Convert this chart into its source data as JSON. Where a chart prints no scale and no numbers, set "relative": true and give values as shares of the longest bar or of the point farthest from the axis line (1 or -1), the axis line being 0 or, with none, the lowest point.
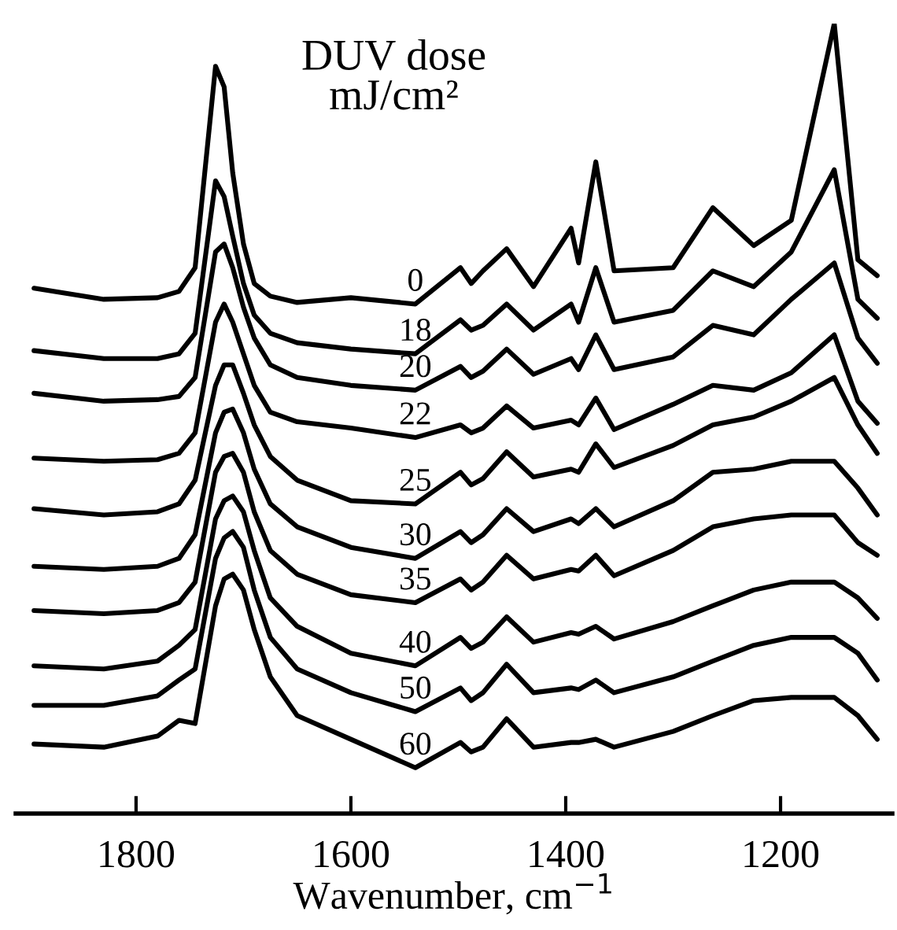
{
  "chart_data": {
    "type": "line",
    "relative": true,
    "legend": false,
    "grid": false,
    "tick_labels": "x",
    "marker": "none",
    "line_style": "solid",
    "legend_title": "DUV dose\nmJ/cm²",
    "xlabel": "Wavenumber, cm$^{−1}$",
    "xlim": [
      1912,
      1096
    ],
    "xticks": [
      1800,
      1600,
      1400,
      1200
    ],
    "x": [
      1895,
      1830,
      1780,
      1760,
      1745,
      1726,
      1718,
      1710,
      1700,
      1690,
      1675,
      1650,
      1600,
      1540,
      1498,
      1488,
      1477,
      1455,
      1430,
      1395,
      1388,
      1372,
      1355,
      1300,
      1263,
      1225,
      1190,
      1150,
      1128,
      1110
    ],
    "series": [
      {
        "name": "0",
        "color": "#000000",
        "values": [
          0.665,
          0.651,
          0.653,
          0.661,
          0.691,
          0.946,
          0.92,
          0.811,
          0.721,
          0.671,
          0.655,
          0.647,
          0.653,
          0.645,
          0.691,
          0.671,
          0.687,
          0.715,
          0.667,
          0.741,
          0.697,
          0.825,
          0.687,
          0.691,
          0.767,
          0.719,
          0.751,
          1,
          0.701,
          0.681
        ]
      },
      {
        "name": "18",
        "color": "#000000",
        "values": [
          0.586,
          0.576,
          0.576,
          0.582,
          0.608,
          0.801,
          0.781,
          0.731,
          0.671,
          0.631,
          0.608,
          0.596,
          0.588,
          0.582,
          0.625,
          0.612,
          0.618,
          0.645,
          0.612,
          0.645,
          0.622,
          0.691,
          0.622,
          0.637,
          0.687,
          0.667,
          0.711,
          0.815,
          0.651,
          0.627
        ]
      },
      {
        "name": "20",
        "color": "#000000",
        "values": [
          0.532,
          0.522,
          0.524,
          0.528,
          0.552,
          0.711,
          0.721,
          0.691,
          0.641,
          0.602,
          0.568,
          0.552,
          0.542,
          0.536,
          0.566,
          0.552,
          0.56,
          0.588,
          0.556,
          0.576,
          0.562,
          0.606,
          0.562,
          0.578,
          0.618,
          0.606,
          0.651,
          0.697,
          0.602,
          0.57
        ]
      },
      {
        "name": "22",
        "color": "#000000",
        "values": [
          0.45,
          0.446,
          0.448,
          0.456,
          0.482,
          0.622,
          0.645,
          0.622,
          0.582,
          0.542,
          0.508,
          0.496,
          0.488,
          0.476,
          0.492,
          0.482,
          0.488,
          0.516,
          0.488,
          0.498,
          0.492,
          0.526,
          0.486,
          0.518,
          0.542,
          0.536,
          0.558,
          0.606,
          0.522,
          0.494
        ]
      },
      {
        "name": "25",
        "color": "#000000",
        "values": [
          0.386,
          0.378,
          0.382,
          0.392,
          0.422,
          0.542,
          0.568,
          0.568,
          0.532,
          0.492,
          0.452,
          0.422,
          0.396,
          0.392,
          0.432,
          0.416,
          0.424,
          0.458,
          0.426,
          0.436,
          0.432,
          0.468,
          0.438,
          0.466,
          0.492,
          0.502,
          0.522,
          0.552,
          0.492,
          0.456
        ]
      },
      {
        "name": "30",
        "color": "#000000",
        "values": [
          0.313,
          0.309,
          0.313,
          0.323,
          0.353,
          0.482,
          0.508,
          0.512,
          0.482,
          0.436,
          0.392,
          0.363,
          0.337,
          0.323,
          0.357,
          0.343,
          0.353,
          0.386,
          0.357,
          0.373,
          0.367,
          0.386,
          0.363,
          0.396,
          0.432,
          0.436,
          0.446,
          0.446,
          0.412,
          0.378
        ]
      },
      {
        "name": "35",
        "color": "#000000",
        "values": [
          0.257,
          0.253,
          0.257,
          0.267,
          0.293,
          0.432,
          0.452,
          0.456,
          0.432,
          0.382,
          0.333,
          0.303,
          0.277,
          0.267,
          0.297,
          0.283,
          0.293,
          0.327,
          0.297,
          0.309,
          0.307,
          0.327,
          0.301,
          0.333,
          0.363,
          0.373,
          0.378,
          0.378,
          0.343,
          0.327
        ]
      },
      {
        "name": "40",
        "color": "#000000",
        "values": [
          0.187,
          0.183,
          0.193,
          0.213,
          0.233,
          0.373,
          0.396,
          0.402,
          0.382,
          0.333,
          0.273,
          0.237,
          0.203,
          0.187,
          0.223,
          0.209,
          0.217,
          0.249,
          0.217,
          0.229,
          0.227,
          0.237,
          0.221,
          0.243,
          0.263,
          0.283,
          0.293,
          0.293,
          0.273,
          0.247
        ]
      },
      {
        "name": "50",
        "color": "#000000",
        "values": [
          0.137,
          0.137,
          0.149,
          0.169,
          0.183,
          0.323,
          0.349,
          0.357,
          0.337,
          0.283,
          0.223,
          0.183,
          0.153,
          0.129,
          0.159,
          0.143,
          0.153,
          0.189,
          0.153,
          0.159,
          0.157,
          0.169,
          0.153,
          0.173,
          0.193,
          0.213,
          0.223,
          0.223,
          0.203,
          0.169
        ]
      },
      {
        "name": "60",
        "color": "#000000",
        "values": [
          0.088,
          0.084,
          0.098,
          0.118,
          0.114,
          0.263,
          0.297,
          0.303,
          0.283,
          0.233,
          0.173,
          0.124,
          0.094,
          0.058,
          0.09,
          0.078,
          0.084,
          0.12,
          0.084,
          0.09,
          0.09,
          0.094,
          0.084,
          0.104,
          0.124,
          0.143,
          0.147,
          0.147,
          0.124,
          0.094
        ]
      }
    ]
  }
}
